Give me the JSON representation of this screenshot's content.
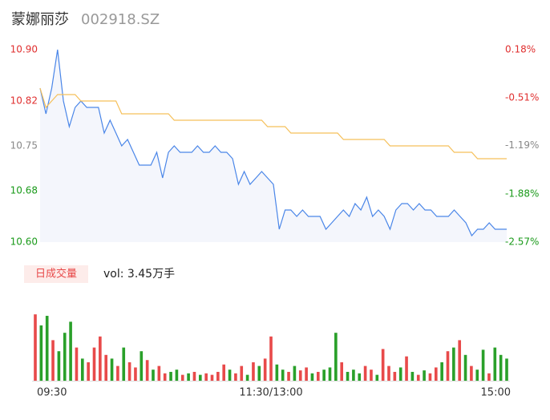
{
  "header": {
    "name": "蒙娜丽莎",
    "code": "002918.SZ"
  },
  "chart_data": [
    {
      "type": "line",
      "area": true,
      "area_color": "#f4f6fc",
      "series": [
        {
          "color": "#4a86e8",
          "values": [
            10.84,
            10.8,
            10.84,
            10.9,
            10.82,
            10.78,
            10.81,
            10.82,
            10.81,
            10.81,
            10.81,
            10.77,
            10.79,
            10.77,
            10.75,
            10.76,
            10.74,
            10.72,
            10.72,
            10.72,
            10.74,
            10.7,
            10.74,
            10.75,
            10.74,
            10.74,
            10.74,
            10.75,
            10.74,
            10.74,
            10.75,
            10.74,
            10.74,
            10.73,
            10.69,
            10.71,
            10.69,
            10.7,
            10.71,
            10.7,
            10.69,
            10.62,
            10.65,
            10.65,
            10.64,
            10.65,
            10.64,
            10.64,
            10.64,
            10.62,
            10.63,
            10.64,
            10.65,
            10.64,
            10.66,
            10.65,
            10.67,
            10.64,
            10.65,
            10.64,
            10.62,
            10.65,
            10.66,
            10.66,
            10.65,
            10.66,
            10.65,
            10.65,
            10.64,
            10.64,
            10.64,
            10.65,
            10.64,
            10.63,
            10.61,
            10.62,
            10.62,
            10.63,
            10.62,
            10.62,
            10.62
          ]
        },
        {
          "color": "#f5c05a",
          "values": [
            10.84,
            10.81,
            10.82,
            10.83,
            10.83,
            10.83,
            10.83,
            10.82,
            10.82,
            10.82,
            10.82,
            10.82,
            10.82,
            10.82,
            10.8,
            10.8,
            10.8,
            10.8,
            10.8,
            10.8,
            10.8,
            10.8,
            10.8,
            10.79,
            10.79,
            10.79,
            10.79,
            10.79,
            10.79,
            10.79,
            10.79,
            10.79,
            10.79,
            10.79,
            10.79,
            10.79,
            10.79,
            10.79,
            10.79,
            10.78,
            10.78,
            10.78,
            10.78,
            10.77,
            10.77,
            10.77,
            10.77,
            10.77,
            10.77,
            10.77,
            10.77,
            10.77,
            10.76,
            10.76,
            10.76,
            10.76,
            10.76,
            10.76,
            10.76,
            10.76,
            10.75,
            10.75,
            10.75,
            10.75,
            10.75,
            10.75,
            10.75,
            10.75,
            10.75,
            10.75,
            10.75,
            10.74,
            10.74,
            10.74,
            10.74,
            10.73,
            10.73,
            10.73,
            10.73,
            10.73,
            10.73
          ]
        }
      ],
      "ylim": [
        10.6,
        10.9
      ],
      "yticks": [
        {
          "value": 10.9,
          "label": "10.90"
        },
        {
          "value": 10.82,
          "label": "10.82"
        },
        {
          "value": 10.75,
          "label": "10.75"
        },
        {
          "value": 10.68,
          "label": "10.68"
        },
        {
          "value": 10.6,
          "label": "10.60"
        }
      ],
      "y2lim": [
        -2.57,
        0.18
      ],
      "y2ticks": [
        {
          "value": 0.18,
          "label": "0.18%"
        },
        {
          "value": -0.51,
          "label": "-0.51%"
        },
        {
          "value": -1.19,
          "label": "-1.19%"
        },
        {
          "value": -1.88,
          "label": "-1.88%"
        },
        {
          "value": -2.57,
          "label": "-2.57%"
        }
      ],
      "ytick_colors": [
        "#e03030",
        "#e03030",
        "#888888",
        "#1a9a1a",
        "#1a9a1a"
      ]
    },
    {
      "type": "bar",
      "label": "日成交量",
      "summary": "vol: 3.45万手",
      "values": [
        90,
        75,
        88,
        55,
        40,
        65,
        80,
        45,
        30,
        25,
        45,
        60,
        35,
        30,
        20,
        45,
        25,
        18,
        40,
        28,
        15,
        20,
        10,
        12,
        15,
        8,
        10,
        12,
        8,
        10,
        8,
        12,
        22,
        15,
        10,
        20,
        8,
        25,
        20,
        30,
        60,
        22,
        15,
        12,
        20,
        14,
        18,
        10,
        12,
        15,
        18,
        65,
        25,
        12,
        15,
        10,
        20,
        15,
        8,
        43,
        20,
        12,
        18,
        33,
        12,
        8,
        14,
        10,
        18,
        25,
        40,
        45,
        55,
        35,
        20,
        15,
        42,
        10,
        45,
        35,
        30
      ],
      "directions": [
        "up",
        "down",
        "down",
        "up",
        "down",
        "down",
        "down",
        "up",
        "down",
        "up",
        "up",
        "up",
        "up",
        "down",
        "up",
        "down",
        "up",
        "up",
        "down",
        "up",
        "down",
        "up",
        "up",
        "down",
        "down",
        "up",
        "down",
        "up",
        "down",
        "up",
        "up",
        "up",
        "up",
        "down",
        "up",
        "up",
        "down",
        "up",
        "down",
        "up",
        "up",
        "down",
        "down",
        "up",
        "down",
        "up",
        "up",
        "down",
        "up",
        "down",
        "down",
        "down",
        "up",
        "down",
        "down",
        "down",
        "up",
        "up",
        "down",
        "up",
        "up",
        "up",
        "down",
        "up",
        "down",
        "up",
        "down",
        "up",
        "up",
        "down",
        "up",
        "down",
        "up",
        "down",
        "up",
        "down",
        "down",
        "up",
        "down",
        "down",
        "down"
      ],
      "up_color": "#e84a4a",
      "down_color": "#2aa02a",
      "ylim": [
        0,
        100
      ],
      "xlim": [
        0,
        80
      ],
      "xticks": [
        {
          "value": 0,
          "label": "09:30"
        },
        {
          "value": 40,
          "label": "11:30/13:00"
        },
        {
          "value": 80,
          "label": "15:00"
        }
      ]
    }
  ]
}
